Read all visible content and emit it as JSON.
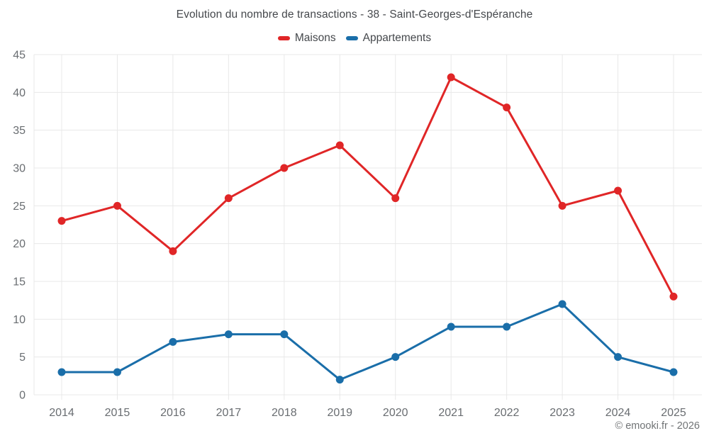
{
  "title": "Evolution du nombre de transactions - 38 - Saint-Georges-d'Espéranche",
  "footer": "© emooki.fr - 2026",
  "colors": {
    "maisons": "#e02627",
    "appartements": "#1a6ea9",
    "grid": "#e8e8e8",
    "axis_text": "#696d71",
    "title_text": "#45484c",
    "footer_text": "#717476"
  },
  "chart_data": {
    "type": "line",
    "title": "Evolution du nombre de transactions - 38 - Saint-Georges-d'Espéranche",
    "categories": [
      "2014",
      "2015",
      "2016",
      "2017",
      "2018",
      "2019",
      "2020",
      "2021",
      "2022",
      "2023",
      "2024",
      "2025"
    ],
    "series": [
      {
        "name": "Maisons",
        "color": "#e02627",
        "values": [
          23,
          25,
          19,
          26,
          30,
          33,
          26,
          42,
          38,
          25,
          27,
          13
        ]
      },
      {
        "name": "Appartements",
        "color": "#1a6ea9",
        "values": [
          3,
          3,
          7,
          8,
          8,
          2,
          5,
          9,
          9,
          12,
          5,
          3
        ]
      }
    ],
    "xlabel": "",
    "ylabel": "",
    "ylim": [
      0,
      45
    ],
    "ytick_step": 5,
    "grid": true,
    "legend_position": "top",
    "marker": "circle"
  }
}
